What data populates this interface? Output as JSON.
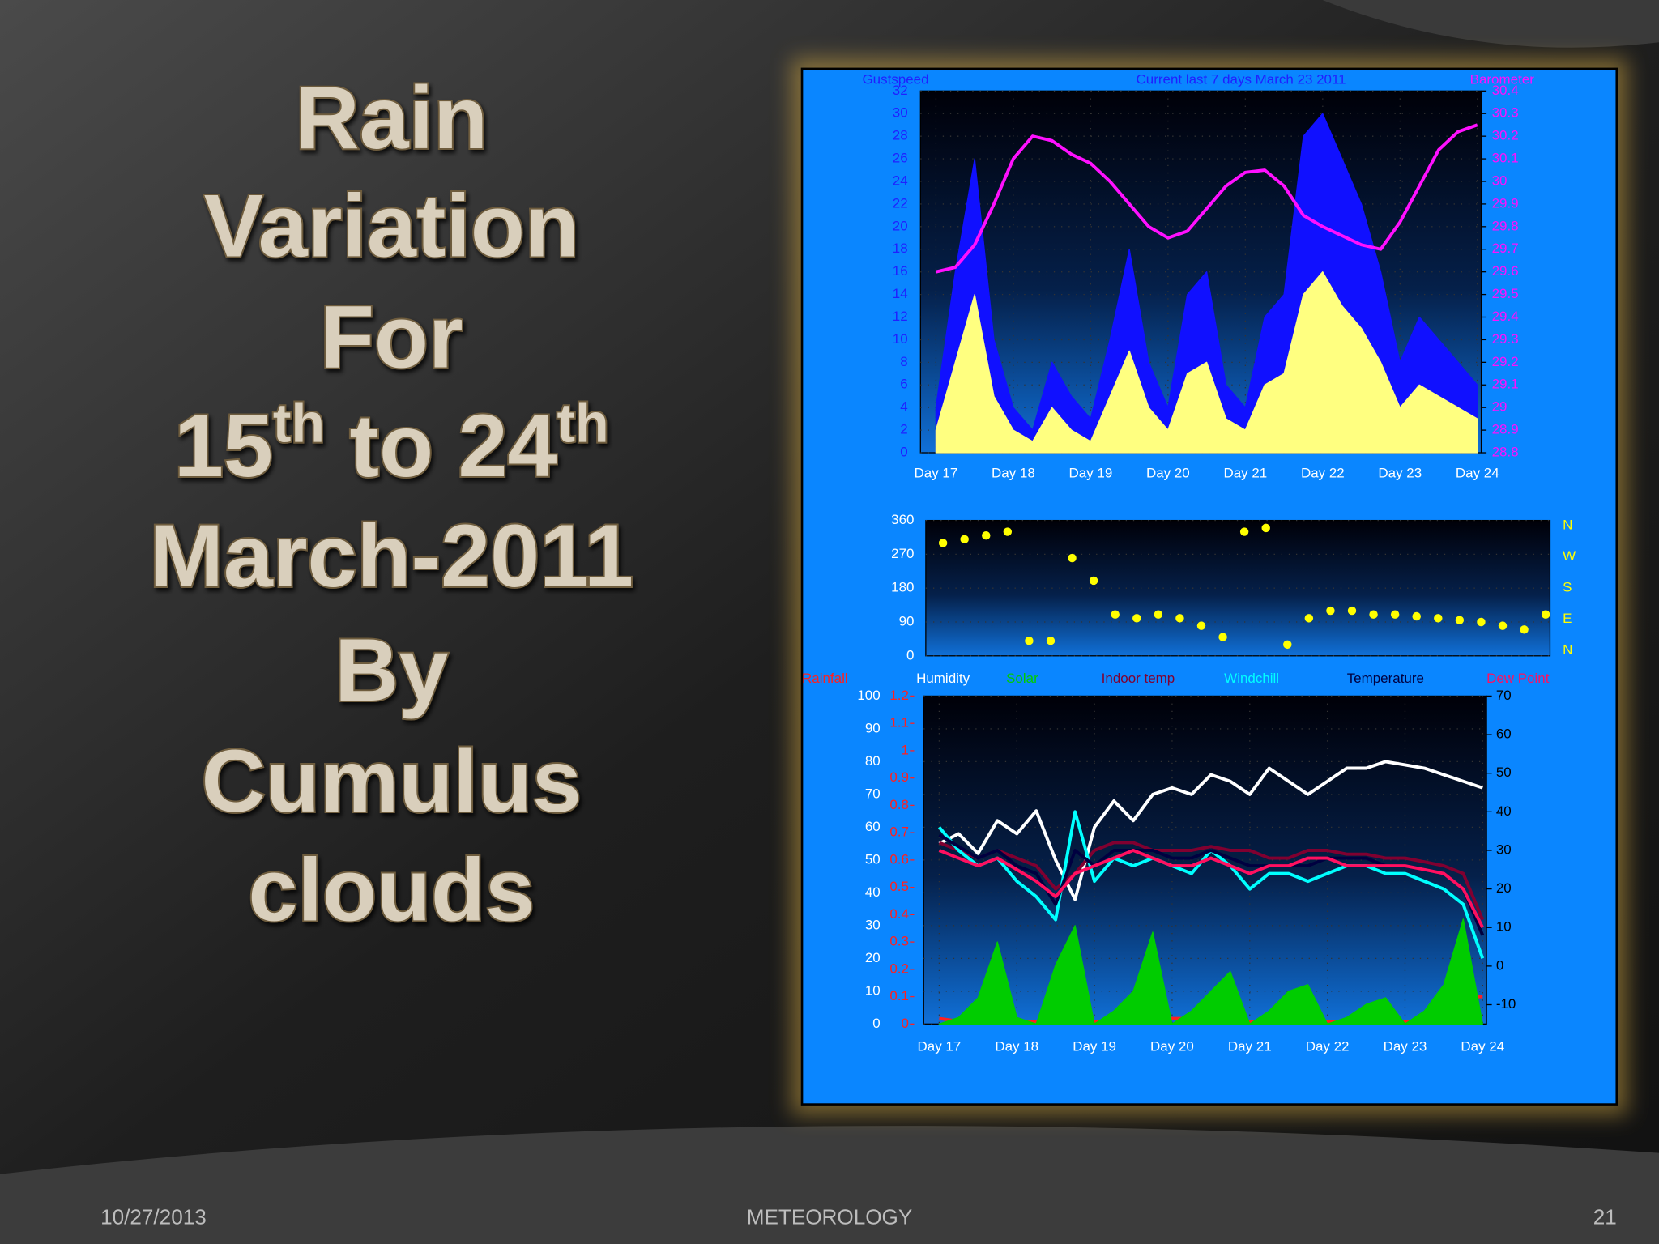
{
  "title": [
    "Rain",
    "Variation",
    "For",
    [
      "15",
      "th",
      " to 24",
      "th"
    ],
    "March-2011",
    "By",
    "Cumulus",
    "clouds"
  ],
  "footer": {
    "date": "10/27/2013",
    "subject": "METEOROLOGY",
    "page": "21"
  },
  "chart_data": [
    {
      "type": "line",
      "title": "Current last 7 days March 23 2011",
      "y_label": "Gustspeed",
      "y2_label": "Barometer",
      "xlim": [
        16.8,
        24.05
      ],
      "xticks": [
        {
          "value": 17,
          "label": "Day 17"
        },
        {
          "value": 18,
          "label": "Day 18"
        },
        {
          "value": 19,
          "label": "Day 19"
        },
        {
          "value": 20,
          "label": "Day 20"
        },
        {
          "value": 21,
          "label": "Day 21"
        },
        {
          "value": 22,
          "label": "Day 22"
        },
        {
          "value": 23,
          "label": "Day 23"
        },
        {
          "value": 24,
          "label": "Day 24"
        }
      ],
      "ylim": [
        0,
        32
      ],
      "yticks": [
        0,
        2,
        4,
        6,
        8,
        10,
        12,
        14,
        16,
        18,
        20,
        22,
        24,
        26,
        28,
        30,
        32
      ],
      "y2lim": [
        28.8,
        30.4
      ],
      "y2ticks": [
        28.8,
        28.9,
        29,
        29.1,
        29.2,
        29.3,
        29.4,
        29.5,
        29.6,
        29.7,
        29.8,
        29.9,
        30,
        30.1,
        30.2,
        30.3,
        30.4
      ],
      "y2color": "#ff10ff",
      "x": [
        17,
        17.25,
        17.5,
        17.75,
        18,
        18.25,
        18.5,
        18.75,
        19,
        19.25,
        19.5,
        19.75,
        20,
        20.25,
        20.5,
        20.75,
        21,
        21.25,
        21.5,
        21.75,
        22,
        22.25,
        22.5,
        22.75,
        23,
        23.25,
        23.5,
        23.75,
        24
      ],
      "series": [
        {
          "color": "#1010ff",
          "style": "area",
          "values": [
            4,
            16,
            26,
            10,
            4,
            2,
            8,
            5,
            3,
            10,
            18,
            8,
            4,
            14,
            16,
            6,
            4,
            12,
            14,
            28,
            30,
            26,
            22,
            16,
            8,
            12,
            10,
            8,
            6
          ]
        },
        {
          "color": "#ffff80",
          "style": "area",
          "values": [
            2,
            8,
            14,
            5,
            2,
            1,
            4,
            2,
            1,
            5,
            9,
            4,
            2,
            7,
            8,
            3,
            2,
            6,
            7,
            14,
            16,
            13,
            11,
            8,
            4,
            6,
            5,
            4,
            3
          ]
        },
        {
          "color": "#ff10ff",
          "style": "line",
          "axis": "y2",
          "values": [
            29.6,
            29.62,
            29.72,
            29.9,
            30.1,
            30.2,
            30.18,
            30.12,
            30.08,
            30,
            29.9,
            29.8,
            29.75,
            29.78,
            29.88,
            29.98,
            30.04,
            30.05,
            29.98,
            29.85,
            29.8,
            29.76,
            29.72,
            29.7,
            29.82,
            29.98,
            30.14,
            30.22,
            30.25
          ]
        }
      ]
    },
    {
      "type": "scatter",
      "xlim": [
        16.8,
        24.05
      ],
      "ylim": [
        0,
        360
      ],
      "yticks": [
        0,
        90,
        180,
        270,
        360
      ],
      "compass": [
        "N",
        "W",
        "S",
        "E",
        "N"
      ],
      "x": [
        17,
        17.25,
        17.5,
        17.75,
        18,
        18.25,
        18.5,
        18.75,
        19,
        19.25,
        19.5,
        19.75,
        20,
        20.25,
        20.5,
        20.75,
        21,
        21.25,
        21.5,
        21.75,
        22,
        22.25,
        22.5,
        22.75,
        23,
        23.25,
        23.5,
        23.75,
        24
      ],
      "series": [
        {
          "color": "#ffff00",
          "style": "dots",
          "values": [
            300,
            310,
            320,
            330,
            40,
            40,
            260,
            200,
            110,
            100,
            110,
            100,
            80,
            50,
            330,
            340,
            30,
            100,
            120,
            120,
            110,
            110,
            105,
            100,
            95,
            90,
            80,
            70,
            110
          ]
        }
      ]
    },
    {
      "type": "line",
      "xlim": [
        16.8,
        24.05
      ],
      "xticks": [
        {
          "value": 17,
          "label": "Day 17"
        },
        {
          "value": 18,
          "label": "Day 18"
        },
        {
          "value": 19,
          "label": "Day 19"
        },
        {
          "value": 20,
          "label": "Day 20"
        },
        {
          "value": 21,
          "label": "Day 21"
        },
        {
          "value": 22,
          "label": "Day 22"
        },
        {
          "value": 23,
          "label": "Day 23"
        },
        {
          "value": 24,
          "label": "Day 24"
        }
      ],
      "ylim": [
        0,
        100
      ],
      "yticks": [
        0,
        10,
        20,
        30,
        40,
        50,
        60,
        70,
        80,
        90,
        100
      ],
      "y3lim": [
        0,
        1.2
      ],
      "y3ticks": [
        0,
        0.1,
        0.2,
        0.3,
        0.4,
        0.5,
        0.6,
        0.7,
        0.8,
        0.9,
        1,
        1.1,
        1.2
      ],
      "y3color": "#ff2020",
      "y2lim": [
        -15,
        70
      ],
      "y2ticks": [
        -10,
        0,
        10,
        20,
        30,
        40,
        50,
        60,
        70
      ],
      "x": [
        17,
        17.25,
        17.5,
        17.75,
        18,
        18.25,
        18.5,
        18.75,
        19,
        19.25,
        19.5,
        19.75,
        20,
        20.25,
        20.5,
        20.75,
        21,
        21.25,
        21.5,
        21.75,
        22,
        22.25,
        22.5,
        22.75,
        23,
        23.25,
        23.5,
        23.75,
        24
      ],
      "series": [
        {
          "name": "Rainfall",
          "color": "#ff2020",
          "style": "line",
          "axis": "y3",
          "values": [
            0.02,
            0.01,
            0.01,
            0.01,
            0.01,
            0.01,
            0.01,
            0.01,
            0.01,
            0.01,
            0.01,
            0.02,
            0.02,
            0.02,
            0.01,
            0.01,
            0.01,
            0.01,
            0.01,
            0.01,
            0.01,
            0.01,
            0.01,
            0.01,
            0.01,
            0.01,
            0.01,
            0.1,
            0.1
          ]
        },
        {
          "name": "Humidity",
          "color": "#ffffff",
          "style": "line",
          "values": [
            55,
            58,
            52,
            62,
            58,
            65,
            50,
            38,
            60,
            68,
            62,
            70,
            72,
            70,
            76,
            74,
            70,
            78,
            74,
            70,
            74,
            78,
            78,
            80,
            79,
            78,
            76,
            74,
            72
          ]
        },
        {
          "name": "Solar",
          "color": "#00cc00",
          "style": "area",
          "values": [
            0,
            2,
            8,
            25,
            2,
            0,
            18,
            30,
            0,
            4,
            10,
            28,
            0,
            4,
            10,
            16,
            0,
            4,
            10,
            12,
            0,
            2,
            6,
            8,
            0,
            4,
            12,
            32,
            0
          ]
        },
        {
          "name": "Indoor temp",
          "color": "#800030",
          "style": "line",
          "axis": "y2",
          "values": [
            32,
            30,
            28,
            30,
            28,
            26,
            20,
            24,
            30,
            32,
            32,
            30,
            30,
            30,
            31,
            30,
            30,
            28,
            28,
            30,
            30,
            29,
            29,
            28,
            28,
            27,
            26,
            24,
            12
          ]
        },
        {
          "name": "Windchill",
          "color": "#00ffff",
          "style": "line",
          "axis": "y2",
          "values": [
            36,
            30,
            26,
            28,
            22,
            18,
            12,
            40,
            22,
            28,
            26,
            28,
            26,
            24,
            30,
            26,
            20,
            24,
            24,
            22,
            24,
            26,
            26,
            24,
            24,
            22,
            20,
            16,
            2
          ]
        },
        {
          "name": "Temperature",
          "color": "#000040",
          "style": "line",
          "axis": "y2",
          "values": [
            34,
            31,
            28,
            30,
            26,
            24,
            16,
            30,
            26,
            30,
            30,
            30,
            28,
            28,
            30,
            28,
            26,
            26,
            26,
            26,
            28,
            28,
            28,
            26,
            26,
            25,
            24,
            20,
            8
          ]
        },
        {
          "name": "Dew Point",
          "color": "#ff1060",
          "style": "line",
          "axis": "y2",
          "values": [
            30,
            28,
            26,
            28,
            25,
            22,
            18,
            24,
            26,
            28,
            30,
            28,
            26,
            26,
            28,
            26,
            24,
            26,
            26,
            28,
            28,
            26,
            26,
            26,
            26,
            25,
            24,
            20,
            10
          ]
        }
      ]
    }
  ]
}
